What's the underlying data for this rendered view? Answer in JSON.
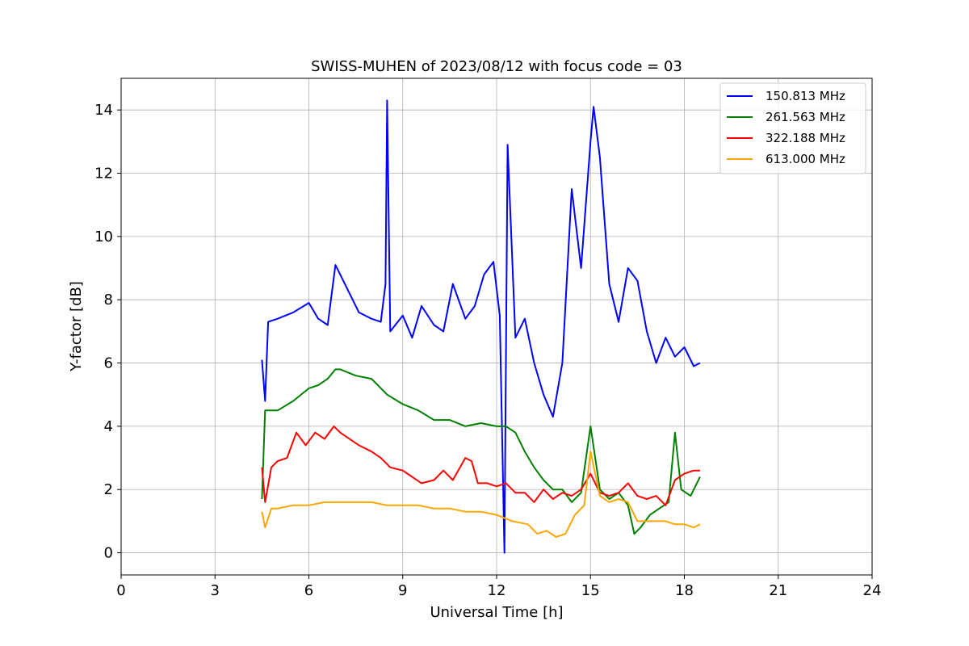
{
  "chart_data": {
    "type": "line",
    "title": "SWISS-MUHEN of 2023/08/12 with focus code = 03",
    "xlabel": "Universal Time [h]",
    "ylabel": "Y-factor [dB]",
    "xlim": [
      0,
      24
    ],
    "ylim": [
      -0.7,
      15
    ],
    "xticks": [
      0,
      3,
      6,
      9,
      12,
      15,
      18,
      21,
      24
    ],
    "yticks": [
      0,
      2,
      4,
      6,
      8,
      10,
      12,
      14
    ],
    "grid": true,
    "legend_position": "top-right",
    "series": [
      {
        "name": "150.813 MHz",
        "color": "#0000ff",
        "x": [
          4.5,
          4.6,
          4.7,
          5.0,
          5.5,
          6.0,
          6.3,
          6.6,
          6.85,
          7.0,
          7.3,
          7.6,
          8.0,
          8.3,
          8.45,
          8.5,
          8.6,
          9.0,
          9.3,
          9.6,
          10.0,
          10.3,
          10.6,
          11.0,
          11.3,
          11.6,
          11.9,
          12.1,
          12.25,
          12.35,
          12.6,
          12.9,
          13.2,
          13.5,
          13.8,
          14.1,
          14.4,
          14.7,
          15.0,
          15.1,
          15.3,
          15.6,
          15.9,
          16.2,
          16.5,
          16.8,
          17.1,
          17.4,
          17.7,
          18.0,
          18.3,
          18.5
        ],
        "values": [
          6.1,
          4.8,
          7.3,
          7.4,
          7.6,
          7.9,
          7.4,
          7.2,
          9.1,
          8.8,
          8.2,
          7.6,
          7.4,
          7.3,
          8.5,
          14.3,
          7.0,
          7.5,
          6.8,
          7.8,
          7.2,
          7.0,
          8.5,
          7.4,
          7.8,
          8.8,
          9.2,
          7.5,
          0.0,
          12.9,
          6.8,
          7.4,
          6.0,
          5.0,
          4.3,
          6.0,
          11.5,
          9.0,
          13.0,
          14.1,
          12.5,
          8.5,
          7.3,
          9.0,
          8.6,
          7.0,
          6.0,
          6.8,
          6.2,
          6.5,
          5.9,
          6.0
        ]
      },
      {
        "name": "261.563 MHz",
        "color": "#008000",
        "x": [
          4.5,
          4.6,
          4.7,
          5.0,
          5.5,
          6.0,
          6.3,
          6.6,
          6.85,
          7.0,
          7.5,
          8.0,
          8.5,
          9.0,
          9.5,
          10.0,
          10.5,
          11.0,
          11.5,
          12.0,
          12.3,
          12.6,
          12.9,
          13.2,
          13.5,
          13.8,
          14.1,
          14.4,
          14.7,
          15.0,
          15.3,
          15.6,
          15.9,
          16.2,
          16.4,
          16.6,
          16.9,
          17.2,
          17.5,
          17.7,
          17.9,
          18.2,
          18.5
        ],
        "values": [
          1.7,
          4.5,
          4.5,
          4.5,
          4.8,
          5.2,
          5.3,
          5.5,
          5.8,
          5.8,
          5.6,
          5.5,
          5.0,
          4.7,
          4.5,
          4.2,
          4.2,
          4.0,
          4.1,
          4.0,
          4.0,
          3.8,
          3.2,
          2.7,
          2.3,
          2.0,
          2.0,
          1.6,
          1.9,
          4.0,
          2.0,
          1.7,
          1.9,
          1.5,
          0.6,
          0.8,
          1.2,
          1.4,
          1.6,
          3.8,
          2.0,
          1.8,
          2.4
        ]
      },
      {
        "name": "322.188 MHz",
        "color": "#ff0000",
        "x": [
          4.5,
          4.6,
          4.8,
          5.0,
          5.3,
          5.6,
          5.9,
          6.2,
          6.5,
          6.8,
          7.0,
          7.3,
          7.6,
          8.0,
          8.3,
          8.6,
          9.0,
          9.3,
          9.6,
          10.0,
          10.3,
          10.6,
          11.0,
          11.2,
          11.4,
          11.7,
          12.0,
          12.3,
          12.6,
          12.9,
          13.2,
          13.5,
          13.8,
          14.1,
          14.4,
          14.7,
          15.0,
          15.3,
          15.6,
          15.9,
          16.2,
          16.5,
          16.8,
          17.1,
          17.4,
          17.7,
          18.0,
          18.3,
          18.5
        ],
        "values": [
          2.7,
          1.6,
          2.7,
          2.9,
          3.0,
          3.8,
          3.4,
          3.8,
          3.6,
          4.0,
          3.8,
          3.6,
          3.4,
          3.2,
          3.0,
          2.7,
          2.6,
          2.4,
          2.2,
          2.3,
          2.6,
          2.3,
          3.0,
          2.9,
          2.2,
          2.2,
          2.1,
          2.2,
          1.9,
          1.9,
          1.6,
          2.0,
          1.7,
          1.9,
          1.8,
          2.0,
          2.5,
          1.9,
          1.8,
          1.9,
          2.2,
          1.8,
          1.7,
          1.8,
          1.5,
          2.3,
          2.5,
          2.6,
          2.6
        ]
      },
      {
        "name": "613.000 MHz",
        "color": "#ffa500",
        "x": [
          4.5,
          4.6,
          4.8,
          5.0,
          5.5,
          6.0,
          6.5,
          7.0,
          7.5,
          8.0,
          8.5,
          9.0,
          9.5,
          10.0,
          10.5,
          11.0,
          11.5,
          12.0,
          12.5,
          13.0,
          13.3,
          13.6,
          13.9,
          14.2,
          14.5,
          14.8,
          15.0,
          15.3,
          15.6,
          15.9,
          16.2,
          16.5,
          16.8,
          17.1,
          17.4,
          17.7,
          18.0,
          18.3,
          18.5
        ],
        "values": [
          1.3,
          0.8,
          1.4,
          1.4,
          1.5,
          1.5,
          1.6,
          1.6,
          1.6,
          1.6,
          1.5,
          1.5,
          1.5,
          1.4,
          1.4,
          1.3,
          1.3,
          1.2,
          1.0,
          0.9,
          0.6,
          0.7,
          0.5,
          0.6,
          1.2,
          1.5,
          3.2,
          1.8,
          1.6,
          1.7,
          1.6,
          1.0,
          1.0,
          1.0,
          1.0,
          0.9,
          0.9,
          0.8,
          0.9
        ]
      }
    ]
  }
}
